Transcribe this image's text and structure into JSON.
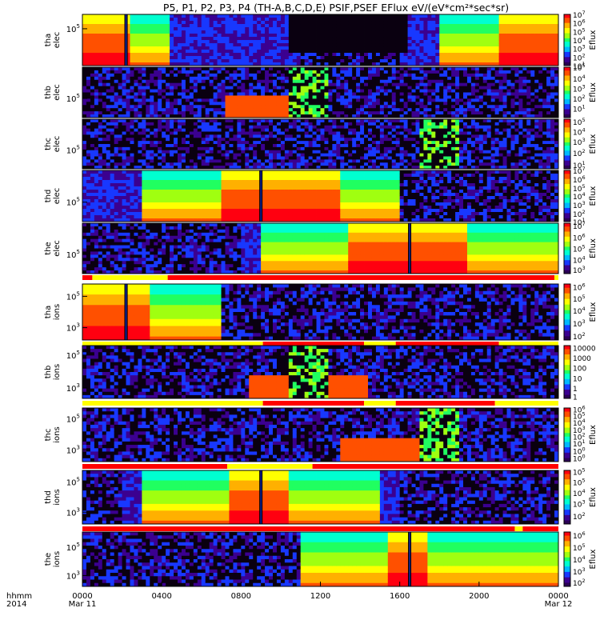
{
  "title": "P5, P1, P2, P3, P4 (TH-A,B,C,D,E) PSIF,PSEF EFlux eV/(eV*cm²*sec*sr)",
  "colors": {
    "background": "#ffffff",
    "fill_value": "#0a0010",
    "bar_red": "#ff0000",
    "bar_yellow": "#ffff00"
  },
  "chart_data": {
    "type": "heatmap",
    "title": "P5, P1, P2, P3, P4 (TH-A,B,C,D,E) PSIF,PSEF EFlux eV/(eV*cm²*sec*sr)",
    "x_label_rows": [
      "hhmm",
      "2014"
    ],
    "x_range": [
      "2014-03-11T00:00",
      "2014-03-12T00:00"
    ],
    "x_ticks": [
      {
        "hour": 0,
        "label": "0000",
        "sub": "Mar 11"
      },
      {
        "hour": 4,
        "label": "0400",
        "sub": ""
      },
      {
        "hour": 8,
        "label": "0800",
        "sub": ""
      },
      {
        "hour": 12,
        "label": "1200",
        "sub": ""
      },
      {
        "hour": 16,
        "label": "1600",
        "sub": ""
      },
      {
        "hour": 20,
        "label": "2000",
        "sub": ""
      },
      {
        "hour": 24,
        "label": "0000",
        "sub": "Mar 12"
      }
    ],
    "colormap": [
      "#2a0055",
      "#3b0090",
      "#1838ff",
      "#00b8ff",
      "#00ffd0",
      "#20ff60",
      "#a0ff10",
      "#ffff00",
      "#ffb000",
      "#ff5000",
      "#ff0010"
    ],
    "panels": [
      {
        "probe": "tha",
        "species": "elec",
        "ylabel": [
          "tha",
          "elec"
        ],
        "ylog": true,
        "yticks": [
          {
            "exp": "5",
            "frac": 0.28
          }
        ],
        "cbar_label": "Eflux",
        "cbar_ticks": [
          {
            "exp": "7",
            "frac": 0.0
          },
          {
            "exp": "6",
            "frac": 0.167
          },
          {
            "exp": "5",
            "frac": 0.333
          },
          {
            "exp": "4",
            "frac": 0.5
          },
          {
            "exp": "3",
            "frac": 0.667
          },
          {
            "exp": "2",
            "frac": 0.833
          },
          {
            "exp": "1",
            "frac": 1.0
          }
        ],
        "hot_hours": [
          [
            0,
            2.5
          ],
          [
            21,
            24
          ]
        ],
        "warm_hours": [
          [
            0,
            4.5
          ],
          [
            18,
            24
          ]
        ],
        "quiet_hours": [
          [
            10.5,
            16.5
          ]
        ],
        "black_spikes_hours": [
          2.2
        ],
        "noise_hours": [
          [
            11,
            16
          ]
        ],
        "burst_hours": [],
        "low_band_hours": [],
        "bar_below": null
      },
      {
        "probe": "thb",
        "species": "elec",
        "ylabel": [
          "thb",
          "elec"
        ],
        "ylog": true,
        "yticks": [
          {
            "exp": "5",
            "frac": 0.62
          }
        ],
        "cbar_label": "Eflux",
        "cbar_ticks": [
          {
            "exp": "5",
            "frac": 0.0
          },
          {
            "exp": "4",
            "frac": 0.22
          },
          {
            "exp": "3",
            "frac": 0.42
          },
          {
            "exp": "2",
            "frac": 0.62
          },
          {
            "exp": "1",
            "frac": 0.82
          }
        ],
        "hot_hours": [],
        "warm_hours": [],
        "quiet_hours": [],
        "black_spikes_hours": [],
        "noise_hours": [
          [
            0,
            24
          ]
        ],
        "burst_hours": [
          [
            10.5,
            12.5
          ]
        ],
        "low_band_hours": [
          [
            7.2,
            10.5
          ]
        ],
        "bar_below": null
      },
      {
        "probe": "thc",
        "species": "elec",
        "ylabel": [
          "thc",
          "elec"
        ],
        "ylog": true,
        "yticks": [
          {
            "exp": "5",
            "frac": 0.62
          }
        ],
        "cbar_label": "Eflux",
        "cbar_ticks": [
          {
            "exp": "5",
            "frac": 0.05
          },
          {
            "exp": "4",
            "frac": 0.25
          },
          {
            "exp": "3",
            "frac": 0.45
          },
          {
            "exp": "2",
            "frac": 0.68
          },
          {
            "exp": "1",
            "frac": 0.92
          }
        ],
        "hot_hours": [],
        "warm_hours": [],
        "quiet_hours": [],
        "black_spikes_hours": [],
        "noise_hours": [
          [
            0,
            24
          ]
        ],
        "burst_hours": [
          [
            17,
            19
          ]
        ],
        "low_band_hours": [],
        "bar_below": null
      },
      {
        "probe": "thd",
        "species": "elec",
        "ylabel": [
          "thd",
          "elec"
        ],
        "ylog": true,
        "yticks": [
          {
            "exp": "5",
            "frac": 0.62
          }
        ],
        "cbar_label": "Eflux",
        "cbar_ticks": [
          {
            "exp": "7",
            "frac": 0.0
          },
          {
            "exp": "6",
            "frac": 0.17
          },
          {
            "exp": "5",
            "frac": 0.34
          },
          {
            "exp": "4",
            "frac": 0.5
          },
          {
            "exp": "3",
            "frac": 0.67
          },
          {
            "exp": "2",
            "frac": 0.84
          },
          {
            "exp": "1",
            "frac": 1.0
          }
        ],
        "hot_hours": [
          [
            7,
            13
          ]
        ],
        "warm_hours": [
          [
            3,
            16
          ]
        ],
        "quiet_hours": [],
        "black_spikes_hours": [
          9.0
        ],
        "noise_hours": [
          [
            15,
            24
          ]
        ],
        "burst_hours": [],
        "low_band_hours": [],
        "bar_below": null
      },
      {
        "probe": "the",
        "species": "elec",
        "ylabel": [
          "the",
          "elec"
        ],
        "ylog": true,
        "yticks": [
          {
            "exp": "5",
            "frac": 0.62
          }
        ],
        "cbar_label": "Eflux",
        "cbar_ticks": [
          {
            "exp": "7",
            "frac": 0.05
          },
          {
            "exp": "6",
            "frac": 0.28
          },
          {
            "exp": "5",
            "frac": 0.5
          },
          {
            "exp": "4",
            "frac": 0.72
          },
          {
            "exp": "3",
            "frac": 0.92
          }
        ],
        "hot_hours": [
          [
            13.5,
            19.5
          ]
        ],
        "warm_hours": [
          [
            9,
            24
          ]
        ],
        "quiet_hours": [],
        "black_spikes_hours": [
          16.5
        ],
        "noise_hours": [
          [
            0,
            8
          ]
        ],
        "burst_hours": [],
        "low_band_hours": [],
        "bar_below": [
          {
            "start": 0,
            "end": 0.5,
            "color": "red"
          },
          {
            "start": 0.5,
            "end": 4.3,
            "color": "yellow"
          },
          {
            "start": 4.3,
            "end": 23.8,
            "color": "red"
          },
          {
            "start": 23.8,
            "end": 24,
            "color": "yellow"
          }
        ]
      },
      {
        "probe": "tha",
        "species": "ions",
        "ylabel": [
          "tha",
          "ions"
        ],
        "ylog": true,
        "yticks": [
          {
            "exp": "5",
            "frac": 0.22
          },
          {
            "exp": "3",
            "frac": 0.78
          }
        ],
        "cbar_label": "Eflux",
        "cbar_ticks": [
          {
            "exp": "6",
            "frac": 0.05
          },
          {
            "exp": "5",
            "frac": 0.26
          },
          {
            "exp": "4",
            "frac": 0.47
          },
          {
            "exp": "3",
            "frac": 0.7
          },
          {
            "exp": "2",
            "frac": 0.93
          }
        ],
        "hot_hours": [
          [
            0,
            3.5
          ]
        ],
        "warm_hours": [
          [
            0,
            7
          ]
        ],
        "quiet_hours": [],
        "black_spikes_hours": [
          2.2
        ],
        "noise_hours": [
          [
            7,
            24
          ]
        ],
        "burst_hours": [],
        "low_band_hours": [],
        "bar_below": [
          {
            "start": 0,
            "end": 9.1,
            "color": "yellow"
          },
          {
            "start": 9.1,
            "end": 14.2,
            "color": "red"
          },
          {
            "start": 14.2,
            "end": 15.8,
            "color": "yellow"
          },
          {
            "start": 15.8,
            "end": 21,
            "color": "red"
          },
          {
            "start": 21,
            "end": 24,
            "color": "yellow"
          }
        ]
      },
      {
        "probe": "thb",
        "species": "ions",
        "ylabel": [
          "thb",
          "ions"
        ],
        "ylog": true,
        "yticks": [
          {
            "exp": "5",
            "frac": 0.18
          },
          {
            "exp": "3",
            "frac": 0.8
          }
        ],
        "cbar_label": "",
        "cbar_ticks": [
          {
            "text": "10000",
            "frac": 0.04
          },
          {
            "text": "1000",
            "frac": 0.23
          },
          {
            "text": "100",
            "frac": 0.42
          },
          {
            "text": "10",
            "frac": 0.61
          },
          {
            "text": "1",
            "frac": 0.8
          },
          {
            "text": "1",
            "frac": 0.96
          }
        ],
        "hot_hours": [],
        "warm_hours": [],
        "quiet_hours": [],
        "black_spikes_hours": [],
        "noise_hours": [
          [
            0,
            24
          ]
        ],
        "burst_hours": [
          [
            10.5,
            12.5
          ]
        ],
        "low_band_hours": [
          [
            8.5,
            14.5
          ]
        ],
        "bar_below": [
          {
            "start": 0,
            "end": 9.1,
            "color": "yellow"
          },
          {
            "start": 9.1,
            "end": 14.2,
            "color": "red"
          },
          {
            "start": 14.2,
            "end": 15.8,
            "color": "yellow"
          },
          {
            "start": 15.8,
            "end": 20.8,
            "color": "red"
          },
          {
            "start": 20.8,
            "end": 24,
            "color": "yellow"
          }
        ]
      },
      {
        "probe": "thc",
        "species": "ions",
        "ylabel": [
          "thc",
          "ions"
        ],
        "ylog": true,
        "yticks": [
          {
            "exp": "5",
            "frac": 0.2
          },
          {
            "exp": "3",
            "frac": 0.78
          }
        ],
        "cbar_label": "Eflux",
        "cbar_ticks": [
          {
            "exp": "6",
            "frac": 0.02
          },
          {
            "exp": "5",
            "frac": 0.14
          },
          {
            "exp": "4",
            "frac": 0.27
          },
          {
            "exp": "3",
            "frac": 0.4
          },
          {
            "exp": "2",
            "frac": 0.53
          },
          {
            "exp": "1",
            "frac": 0.66
          },
          {
            "exp": "0",
            "frac": 0.8
          },
          {
            "exp": "0",
            "frac": 0.93
          }
        ],
        "hot_hours": [],
        "warm_hours": [],
        "quiet_hours": [],
        "black_spikes_hours": [],
        "noise_hours": [
          [
            0,
            24
          ]
        ],
        "burst_hours": [
          [
            17,
            19
          ]
        ],
        "low_band_hours": [
          [
            13,
            17.5
          ]
        ],
        "bar_below": [
          {
            "start": 0,
            "end": 7.3,
            "color": "red"
          },
          {
            "start": 7.3,
            "end": 11.6,
            "color": "yellow"
          },
          {
            "start": 11.6,
            "end": 24,
            "color": "red"
          }
        ]
      },
      {
        "probe": "thd",
        "species": "ions",
        "ylabel": [
          "thd",
          "ions"
        ],
        "ylog": true,
        "yticks": [
          {
            "exp": "5",
            "frac": 0.22
          },
          {
            "exp": "3",
            "frac": 0.78
          }
        ],
        "cbar_label": "Eflux",
        "cbar_ticks": [
          {
            "exp": "5",
            "frac": 0.02
          },
          {
            "exp": "5",
            "frac": 0.22
          },
          {
            "exp": "4",
            "frac": 0.42
          },
          {
            "exp": "3",
            "frac": 0.62
          },
          {
            "exp": "2",
            "frac": 0.85
          }
        ],
        "hot_hours": [
          [
            7.5,
            10.5
          ]
        ],
        "warm_hours": [
          [
            3,
            15
          ]
        ],
        "quiet_hours": [],
        "black_spikes_hours": [
          9.0
        ],
        "noise_hours": [
          [
            0,
            2
          ],
          [
            16,
            24
          ]
        ],
        "burst_hours": [],
        "low_band_hours": [],
        "bar_below": [
          {
            "start": 0,
            "end": 21.8,
            "color": "red"
          },
          {
            "start": 21.8,
            "end": 22.2,
            "color": "yellow"
          },
          {
            "start": 22.2,
            "end": 24,
            "color": "red"
          }
        ]
      },
      {
        "probe": "the",
        "species": "ions",
        "ylabel": [
          "the",
          "ions"
        ],
        "ylog": true,
        "yticks": [
          {
            "exp": "5",
            "frac": 0.28
          },
          {
            "exp": "3",
            "frac": 0.8
          }
        ],
        "cbar_label": "Eflux",
        "cbar_ticks": [
          {
            "exp": "6",
            "frac": 0.06
          },
          {
            "exp": "5",
            "frac": 0.28
          },
          {
            "exp": "4",
            "frac": 0.5
          },
          {
            "exp": "3",
            "frac": 0.72
          },
          {
            "exp": "2",
            "frac": 0.93
          }
        ],
        "hot_hours": [
          [
            15.5,
            17.5
          ]
        ],
        "warm_hours": [
          [
            11,
            24
          ]
        ],
        "quiet_hours": [],
        "black_spikes_hours": [
          16.5
        ],
        "noise_hours": [
          [
            0,
            11
          ]
        ],
        "burst_hours": [],
        "low_band_hours": [],
        "bar_below": null
      }
    ]
  }
}
